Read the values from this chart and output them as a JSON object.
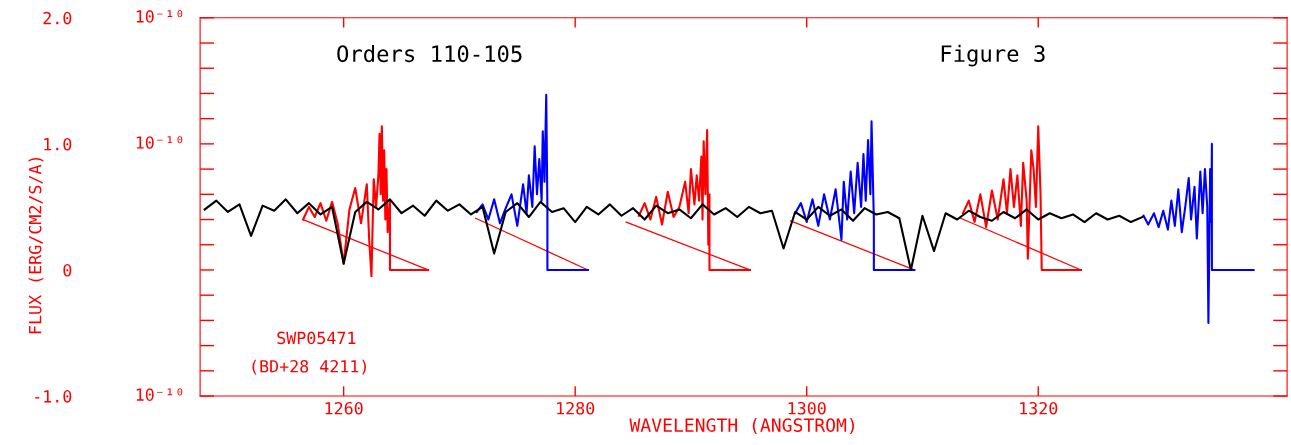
{
  "chart_data": {
    "type": "line",
    "xlabel": "WAVELENGTH (ANGSTROM)",
    "ylabel": "FLUX (ERG/CM2/S/A)",
    "annotations": [
      "Orders 110-105",
      "Figure 3",
      "SWP05471",
      "(BD+28 4211)",
      "10⁻¹⁰",
      "10⁻¹⁰",
      "10⁻¹⁰"
    ],
    "xlim": [
      1247.6,
      1341.5
    ],
    "xticks": [
      1260,
      1280,
      1300,
      1320
    ],
    "ylim": [
      -1.0,
      2.0
    ],
    "yticks": [
      {
        "value": 2.0,
        "label": "2.0"
      },
      {
        "value": 1.8,
        "label": null
      },
      {
        "value": 1.6,
        "label": null
      },
      {
        "value": 1.4,
        "label": null
      },
      {
        "value": 1.2,
        "label": null
      },
      {
        "value": 1.0,
        "label": "1.0"
      },
      {
        "value": 0.8,
        "label": null
      },
      {
        "value": 0.6,
        "label": null
      },
      {
        "value": 0.4,
        "label": null
      },
      {
        "value": 0.2,
        "label": null
      },
      {
        "value": 0,
        "label": "0"
      },
      {
        "value": -0.2,
        "label": null
      },
      {
        "value": -0.4,
        "label": null
      },
      {
        "value": -0.6,
        "label": null
      },
      {
        "value": -0.8,
        "label": null
      },
      {
        "value": -1.0,
        "label": "-1.0"
      }
    ],
    "grid": false,
    "marker": "none",
    "line_style": "solid",
    "series": [
      {
        "color": "#ff0000",
        "x": [
          1256.5,
          1267.3
        ],
        "values": [
          0.4,
          0
        ]
      },
      {
        "color": "#ff0000",
        "x": [
          1271.4,
          1281.1
        ],
        "values": [
          0.41,
          0
        ]
      },
      {
        "color": "#ff0000",
        "x": [
          1284.4,
          1295.1
        ],
        "values": [
          0.38,
          0
        ]
      },
      {
        "color": "#ff0000",
        "x": [
          1298.6,
          1309.3
        ],
        "values": [
          0.39,
          0
        ]
      },
      {
        "color": "#ff0000",
        "x": [
          1313.3,
          1323.7
        ],
        "values": [
          0.41,
          0
        ]
      },
      {
        "color": "#ff0000",
        "x": [
          1256.5,
          1257,
          1257.5,
          1258,
          1258.5,
          1259,
          1259.5,
          1260,
          1260.5,
          1261,
          1261.5,
          1262,
          1262.2,
          1262.4,
          1262.6,
          1262.8,
          1263.0,
          1263.1,
          1263.2,
          1263.3,
          1263.4,
          1263.5,
          1263.6,
          1263.7,
          1263.8,
          1264.0,
          1264.0,
          1267.3
        ],
        "values": [
          0.4,
          0.5,
          0.42,
          0.53,
          0.39,
          0.54,
          0.36,
          0.05,
          0.48,
          0.65,
          0.37,
          0.68,
          0.25,
          -0.05,
          0.72,
          0.5,
          0.75,
          1.08,
          0.6,
          1.14,
          0.55,
          0.95,
          0.4,
          0.8,
          0.3,
          0.55,
          0,
          0
        ]
      },
      {
        "color": "#0000ff",
        "x": [
          1271.5,
          1272,
          1272.5,
          1273,
          1273.5,
          1274,
          1274.5,
          1275,
          1275.5,
          1275.8,
          1276.0,
          1276.3,
          1276.5,
          1276.7,
          1276.9,
          1277.1,
          1277.2,
          1277.35,
          1277.5,
          1277.6,
          1277.6,
          1281.1
        ],
        "values": [
          0.46,
          0.52,
          0.4,
          0.56,
          0.37,
          0.49,
          0.6,
          0.35,
          0.68,
          0.45,
          0.75,
          0.5,
          0.98,
          0.6,
          0.88,
          0.55,
          1.1,
          0.7,
          1.39,
          0.5,
          0,
          0
        ]
      },
      {
        "color": "#ff0000",
        "x": [
          1285.5,
          1286,
          1286.5,
          1287,
          1287.5,
          1288,
          1288.5,
          1289,
          1289.5,
          1289.8,
          1290.0,
          1290.3,
          1290.5,
          1290.7,
          1290.9,
          1291.0,
          1291.1,
          1291.25,
          1291.4,
          1291.5,
          1291.6,
          1291.6,
          1295.1
        ],
        "values": [
          0.43,
          0.53,
          0.4,
          0.58,
          0.36,
          0.62,
          0.42,
          0.5,
          0.7,
          0.45,
          0.8,
          0.52,
          0.75,
          0.55,
          0.9,
          0.4,
          1.02,
          0.6,
          1.11,
          0.2,
          0.6,
          0,
          0
        ]
      },
      {
        "color": "#0000ff",
        "x": [
          1299,
          1299.5,
          1300,
          1300.5,
          1301,
          1301.5,
          1302,
          1302.5,
          1303.0,
          1303.2,
          1303.5,
          1303.8,
          1304.1,
          1304.4,
          1304.7,
          1304.9,
          1305.1,
          1305.3,
          1305.5,
          1305.6,
          1305.8,
          1305.8,
          1309.3
        ],
        "values": [
          0.45,
          0.53,
          0.38,
          0.56,
          0.35,
          0.6,
          0.4,
          0.64,
          0.24,
          0.7,
          0.4,
          0.78,
          0.45,
          0.85,
          0.5,
          0.92,
          0.55,
          1.03,
          0.6,
          1.18,
          0.4,
          0,
          0
        ]
      },
      {
        "color": "#ff0000",
        "x": [
          1313.5,
          1314,
          1314.5,
          1315,
          1315.5,
          1316,
          1316.5,
          1317,
          1317.3,
          1317.6,
          1317.9,
          1318.2,
          1318.5,
          1318.7,
          1319.0,
          1319.1,
          1319.4,
          1319.6,
          1319.8,
          1320.0,
          1320.2,
          1320.3,
          1323.7
        ],
        "values": [
          0.45,
          0.55,
          0.38,
          0.6,
          0.34,
          0.63,
          0.4,
          0.72,
          0.45,
          0.8,
          0.5,
          0.75,
          0.35,
          0.85,
          0.55,
          0.09,
          0.95,
          0.8,
          0.5,
          1.14,
          0.6,
          0,
          0
        ]
      },
      {
        "color": "#0000ff",
        "x": [
          1329.1,
          1329.5,
          1330,
          1330.4,
          1330.8,
          1331.2,
          1331.5,
          1331.8,
          1332.1,
          1332.4,
          1332.7,
          1333.0,
          1333.2,
          1333.5,
          1333.7,
          1334.0,
          1334.2,
          1334.4,
          1334.6,
          1334.7,
          1334.85,
          1334.95,
          1335.0,
          1335.0,
          1338.6
        ],
        "values": [
          0.43,
          0.36,
          0.45,
          0.34,
          0.47,
          0.32,
          0.55,
          0.35,
          0.64,
          0.3,
          0.5,
          0.73,
          0.4,
          0.66,
          0.25,
          0.78,
          0.45,
          0.8,
          0.5,
          -0.42,
          0.8,
          0.38,
          1.0,
          0,
          0
        ]
      },
      {
        "color": "#000000",
        "x": [
          1248,
          1249,
          1250,
          1251,
          1252,
          1253,
          1254,
          1255,
          1256,
          1257,
          1258,
          1259,
          1260,
          1261,
          1262,
          1263,
          1264,
          1265,
          1266,
          1267,
          1268,
          1269,
          1270,
          1271,
          1272,
          1273,
          1274,
          1275,
          1276,
          1277,
          1278,
          1279,
          1280,
          1281,
          1282,
          1283,
          1284,
          1285,
          1286,
          1287,
          1288,
          1289,
          1290,
          1291,
          1292,
          1293,
          1294,
          1295,
          1296,
          1297,
          1298,
          1299,
          1300,
          1301,
          1302,
          1303,
          1304,
          1305,
          1306,
          1307,
          1308,
          1309,
          1310,
          1311,
          1312,
          1313,
          1314,
          1315,
          1316,
          1317,
          1318,
          1319,
          1320,
          1321,
          1322,
          1323,
          1324,
          1325,
          1326,
          1327,
          1328,
          1329
        ],
        "values": [
          0.48,
          0.55,
          0.46,
          0.52,
          0.27,
          0.51,
          0.47,
          0.56,
          0.45,
          0.53,
          0.44,
          0.5,
          0.05,
          0.46,
          0.54,
          0.48,
          0.56,
          0.45,
          0.51,
          0.43,
          0.55,
          0.47,
          0.52,
          0.44,
          0.5,
          0.13,
          0.46,
          0.53,
          0.42,
          0.54,
          0.46,
          0.49,
          0.38,
          0.5,
          0.44,
          0.52,
          0.43,
          0.49,
          0.4,
          0.51,
          0.45,
          0.48,
          0.41,
          0.52,
          0.44,
          0.49,
          0.42,
          0.5,
          0.45,
          0.47,
          0.17,
          0.46,
          0.4,
          0.5,
          0.43,
          0.48,
          0.39,
          0.49,
          0.44,
          0.46,
          0.41,
          0.0,
          0.43,
          0.15,
          0.45,
          0.4,
          0.47,
          0.42,
          0.39,
          0.46,
          0.41,
          0.48,
          0.4,
          0.45,
          0.41,
          0.44,
          0.38,
          0.45,
          0.4,
          0.43,
          0.38,
          0.42
        ]
      }
    ]
  }
}
